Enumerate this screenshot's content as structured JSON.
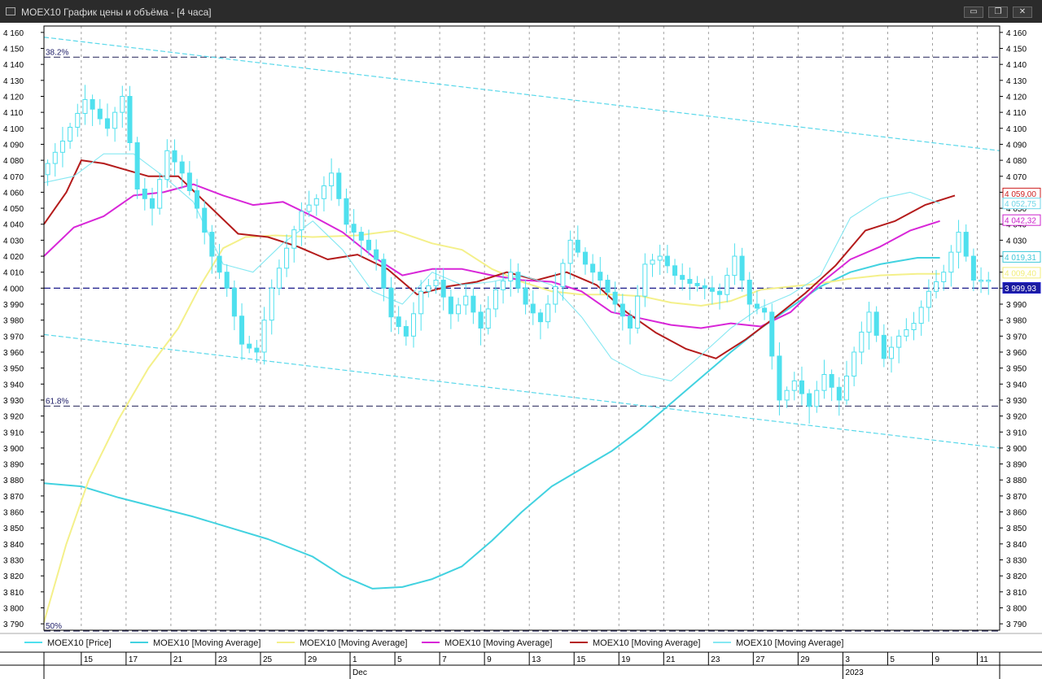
{
  "window": {
    "title": "MOEX10 График цены и объёма - [4 часа]",
    "minimize_glyph": "▭",
    "restore_glyph": "❐",
    "close_glyph": "✕"
  },
  "chart_data": {
    "type": "line",
    "title": "MOEX10 График цены и объёма - [4 часа]",
    "x_ticks": [
      "15",
      "17",
      "21",
      "23",
      "25",
      "29",
      "1",
      "5",
      "7",
      "9",
      "13",
      "15",
      "19",
      "21",
      "23",
      "27",
      "29",
      "3",
      "5",
      "9",
      "11"
    ],
    "x_tick_indices": [
      5,
      11,
      17,
      23,
      29,
      35,
      41,
      47,
      53,
      59,
      65,
      71,
      77,
      83,
      89,
      95,
      101,
      107,
      113,
      119,
      125
    ],
    "x_month_labels": [
      {
        "label": "Dec",
        "index": 41
      },
      {
        "label": "2023",
        "index": 107
      }
    ],
    "y_ticks": [
      4160,
      4150,
      4140,
      4130,
      4120,
      4110,
      4100,
      4090,
      4080,
      4070,
      4060,
      4050,
      4040,
      4030,
      4020,
      4010,
      4000,
      3990,
      3980,
      3970,
      3960,
      3950,
      3940,
      3930,
      3920,
      3910,
      3900,
      3890,
      3880,
      3870,
      3860,
      3850,
      3840,
      3830,
      3820,
      3810,
      3800,
      3790
    ],
    "ylim": [
      3786,
      4164
    ],
    "n_bars": 128,
    "grid": "vertical-dashed",
    "fib_levels": [
      {
        "label": "38.2%",
        "value": 4144.5
      },
      {
        "label": "61.8%",
        "value": 3926.2
      },
      {
        "label": "50%",
        "value": 3785.5
      }
    ],
    "horizontal_level": 4000,
    "price_labels": [
      {
        "text": "4 059,00",
        "value": 4059.0,
        "color": "#cc1f1f"
      },
      {
        "text": "4 052,75",
        "value": 4052.75,
        "color": "#6fd6e8"
      },
      {
        "text": "4 042,32",
        "value": 4042.32,
        "color": "#cc22cc"
      },
      {
        "text": "4 019,31",
        "value": 4019.31,
        "color": "#3ec8d8"
      },
      {
        "text": "4 009,40",
        "value": 4009.4,
        "color": "#f2ee7a"
      },
      {
        "text": "3 999,93",
        "value": 3999.93,
        "color": "#2222cc"
      }
    ],
    "channel_lines": [
      {
        "name": "upper",
        "points": [
          [
            0,
            4157
          ],
          [
            128,
            4086
          ]
        ],
        "color": "#59d8ea"
      },
      {
        "name": "lower",
        "points": [
          [
            0,
            3971
          ],
          [
            128,
            3900
          ]
        ],
        "color": "#59d8ea"
      }
    ],
    "series": [
      {
        "name": "MOEX10 [Price]",
        "color": "#4fe0ee",
        "style": "candles",
        "points": [
          [
            0,
            4071
          ],
          [
            3,
            4092
          ],
          [
            6,
            4118
          ],
          [
            9,
            4100
          ],
          [
            11,
            4120
          ],
          [
            13,
            4062
          ],
          [
            15,
            4050
          ],
          [
            17,
            4086
          ],
          [
            19,
            4072
          ],
          [
            21,
            4050
          ],
          [
            23,
            4020
          ],
          [
            25,
            4000
          ],
          [
            27,
            3965
          ],
          [
            29,
            3960
          ],
          [
            31,
            4000
          ],
          [
            33,
            4025
          ],
          [
            35,
            4048
          ],
          [
            37,
            4056
          ],
          [
            39,
            4072
          ],
          [
            41,
            4040
          ],
          [
            43,
            4030
          ],
          [
            45,
            4018
          ],
          [
            47,
            3982
          ],
          [
            49,
            3970
          ],
          [
            51,
            3998
          ],
          [
            53,
            4005
          ],
          [
            55,
            3984
          ],
          [
            57,
            3995
          ],
          [
            59,
            3975
          ],
          [
            61,
            3999
          ],
          [
            63,
            4010
          ],
          [
            65,
            3990
          ],
          [
            67,
            3979
          ],
          [
            69,
            4001
          ],
          [
            71,
            4030
          ],
          [
            73,
            4015
          ],
          [
            75,
            4005
          ],
          [
            77,
            3990
          ],
          [
            79,
            3975
          ],
          [
            81,
            4015
          ],
          [
            83,
            4020
          ],
          [
            85,
            4008
          ],
          [
            87,
            4003
          ],
          [
            89,
            4000
          ],
          [
            91,
            3996
          ],
          [
            93,
            4020
          ],
          [
            95,
            3990
          ],
          [
            97,
            3985
          ],
          [
            99,
            3930
          ],
          [
            101,
            3942
          ],
          [
            103,
            3926
          ],
          [
            105,
            3946
          ],
          [
            107,
            3930
          ],
          [
            109,
            3960
          ],
          [
            111,
            3985
          ],
          [
            113,
            3956
          ],
          [
            115,
            3970
          ],
          [
            117,
            3978
          ],
          [
            119,
            3998
          ],
          [
            121,
            4010
          ],
          [
            123,
            4035
          ],
          [
            125,
            4005
          ],
          [
            127,
            4025
          ],
          [
            129,
            4000
          ],
          [
            131,
            4020
          ]
        ]
      },
      {
        "name": "MOEX10 [Moving Average]",
        "color": "#42d2e0",
        "points": [
          [
            0,
            3878
          ],
          [
            5,
            3876
          ],
          [
            10,
            3869
          ],
          [
            20,
            3857
          ],
          [
            30,
            3843
          ],
          [
            36,
            3832
          ],
          [
            40,
            3820
          ],
          [
            44,
            3812
          ],
          [
            48,
            3813
          ],
          [
            52,
            3818
          ],
          [
            56,
            3826
          ],
          [
            60,
            3842
          ],
          [
            64,
            3860
          ],
          [
            68,
            3876
          ],
          [
            72,
            3887
          ],
          [
            76,
            3898
          ],
          [
            80,
            3912
          ],
          [
            84,
            3928
          ],
          [
            88,
            3944
          ],
          [
            92,
            3960
          ],
          [
            96,
            3975
          ],
          [
            100,
            3988
          ],
          [
            104,
            4001
          ],
          [
            108,
            4010
          ],
          [
            112,
            4015
          ],
          [
            117,
            4019
          ],
          [
            120,
            4019
          ]
        ]
      },
      {
        "name": "MOEX10 [Moving Average]",
        "color": "#f4f08a",
        "points": [
          [
            0,
            3791
          ],
          [
            3,
            3840
          ],
          [
            6,
            3880
          ],
          [
            10,
            3918
          ],
          [
            14,
            3950
          ],
          [
            18,
            3975
          ],
          [
            21,
            4002
          ],
          [
            24,
            4025
          ],
          [
            27,
            4032
          ],
          [
            31,
            4033
          ],
          [
            36,
            4032
          ],
          [
            42,
            4033
          ],
          [
            47,
            4036
          ],
          [
            52,
            4028
          ],
          [
            56,
            4024
          ],
          [
            60,
            4012
          ],
          [
            64,
            4004
          ],
          [
            68,
            3998
          ],
          [
            72,
            3996
          ],
          [
            76,
            3996
          ],
          [
            80,
            3995
          ],
          [
            84,
            3991
          ],
          [
            88,
            3989
          ],
          [
            92,
            3992
          ],
          [
            96,
            3999
          ],
          [
            100,
            4001
          ],
          [
            104,
            4003
          ],
          [
            108,
            4006
          ],
          [
            112,
            4008
          ],
          [
            117,
            4009
          ],
          [
            120,
            4009
          ]
        ]
      },
      {
        "name": "MOEX10 [Moving Average]",
        "color": "#d826d8",
        "points": [
          [
            0,
            4020
          ],
          [
            4,
            4038
          ],
          [
            8,
            4045
          ],
          [
            12,
            4058
          ],
          [
            16,
            4060
          ],
          [
            20,
            4065
          ],
          [
            24,
            4058
          ],
          [
            28,
            4052
          ],
          [
            32,
            4054
          ],
          [
            36,
            4045
          ],
          [
            40,
            4035
          ],
          [
            44,
            4020
          ],
          [
            48,
            4008
          ],
          [
            52,
            4012
          ],
          [
            56,
            4012
          ],
          [
            60,
            4008
          ],
          [
            64,
            4005
          ],
          [
            68,
            4004
          ],
          [
            72,
            3998
          ],
          [
            76,
            3985
          ],
          [
            80,
            3981
          ],
          [
            84,
            3977
          ],
          [
            88,
            3975
          ],
          [
            92,
            3978
          ],
          [
            96,
            3976
          ],
          [
            100,
            3985
          ],
          [
            104,
            4003
          ],
          [
            108,
            4018
          ],
          [
            112,
            4026
          ],
          [
            116,
            4036
          ],
          [
            120,
            4042
          ]
        ]
      },
      {
        "name": "MOEX10 [Moving Average]",
        "color": "#b41b1b",
        "points": [
          [
            0,
            4040
          ],
          [
            3,
            4060
          ],
          [
            5,
            4080
          ],
          [
            8,
            4078
          ],
          [
            11,
            4074
          ],
          [
            14,
            4070
          ],
          [
            18,
            4070
          ],
          [
            22,
            4052
          ],
          [
            26,
            4034
          ],
          [
            30,
            4032
          ],
          [
            34,
            4026
          ],
          [
            38,
            4018
          ],
          [
            42,
            4021
          ],
          [
            46,
            4012
          ],
          [
            50,
            3996
          ],
          [
            54,
            4001
          ],
          [
            58,
            4004
          ],
          [
            62,
            4010
          ],
          [
            66,
            4005
          ],
          [
            70,
            4010
          ],
          [
            74,
            4002
          ],
          [
            78,
            3985
          ],
          [
            82,
            3972
          ],
          [
            86,
            3962
          ],
          [
            90,
            3956
          ],
          [
            94,
            3968
          ],
          [
            98,
            3982
          ],
          [
            102,
            3997
          ],
          [
            106,
            4014
          ],
          [
            110,
            4036
          ],
          [
            114,
            4042
          ],
          [
            118,
            4052
          ],
          [
            122,
            4058
          ]
        ]
      },
      {
        "name": "MOEX10 [Moving Average]",
        "color": "#86e8f2",
        "points": [
          [
            0,
            4066
          ],
          [
            4,
            4070
          ],
          [
            8,
            4084
          ],
          [
            12,
            4084
          ],
          [
            16,
            4070
          ],
          [
            20,
            4054
          ],
          [
            24,
            4015
          ],
          [
            28,
            4010
          ],
          [
            32,
            4028
          ],
          [
            36,
            4042
          ],
          [
            40,
            4024
          ],
          [
            44,
            3998
          ],
          [
            48,
            3990
          ],
          [
            52,
            4010
          ],
          [
            56,
            4002
          ],
          [
            60,
            4004
          ],
          [
            64,
            4008
          ],
          [
            68,
            4002
          ],
          [
            72,
            3982
          ],
          [
            76,
            3956
          ],
          [
            80,
            3946
          ],
          [
            84,
            3942
          ],
          [
            88,
            3958
          ],
          [
            92,
            3975
          ],
          [
            96,
            3988
          ],
          [
            100,
            3996
          ],
          [
            104,
            4008
          ],
          [
            108,
            4044
          ],
          [
            112,
            4056
          ],
          [
            116,
            4060
          ],
          [
            120,
            4053
          ]
        ]
      }
    ]
  }
}
